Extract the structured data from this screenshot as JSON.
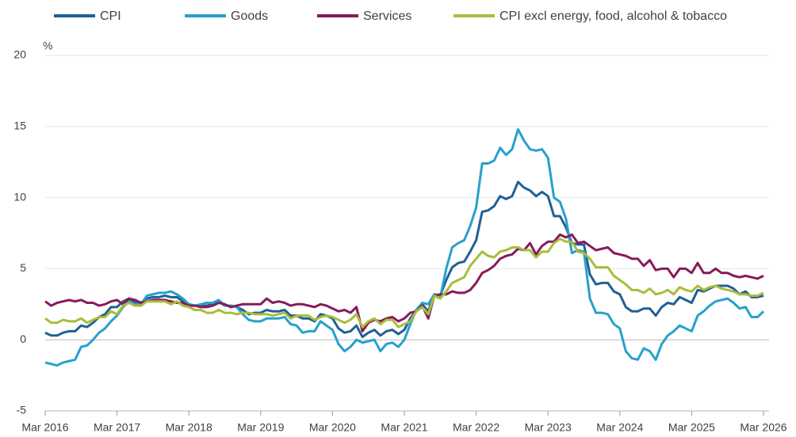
{
  "chart_data": {
    "type": "line",
    "y_label": "%",
    "ylim": [
      -5,
      20
    ],
    "yticks": [
      -5,
      0,
      5,
      10,
      15,
      20
    ],
    "grid": true,
    "categories": [
      "Mar 2016",
      null,
      null,
      null,
      null,
      null,
      null,
      null,
      null,
      null,
      null,
      null,
      "Mar 2017",
      null,
      null,
      null,
      null,
      null,
      null,
      null,
      null,
      null,
      null,
      null,
      "Mar 2018",
      null,
      null,
      null,
      null,
      null,
      null,
      null,
      null,
      null,
      null,
      null,
      "Mar 2019",
      null,
      null,
      null,
      null,
      null,
      null,
      null,
      null,
      null,
      null,
      null,
      "Mar 2020",
      null,
      null,
      null,
      null,
      null,
      null,
      null,
      null,
      null,
      null,
      null,
      "Mar 2021",
      null,
      null,
      null,
      null,
      null,
      null,
      null,
      null,
      null,
      null,
      null,
      "Mar 2022",
      null,
      null,
      null,
      null,
      null,
      null,
      null,
      null,
      null,
      null,
      null,
      "Mar 2023",
      null,
      null,
      null,
      null,
      null,
      null,
      null,
      null,
      null,
      null,
      null,
      "Mar 2024",
      null,
      null,
      null,
      null,
      null,
      null,
      null,
      null,
      null,
      null,
      null,
      "Mar 2025",
      null,
      null,
      null,
      null,
      null,
      null,
      null,
      null,
      null,
      null,
      null,
      "Mar 2026"
    ],
    "series": [
      {
        "name": "CPI",
        "color": "#206095",
        "values": [
          0.5,
          0.3,
          0.3,
          0.5,
          0.6,
          0.6,
          1.0,
          0.9,
          1.2,
          1.6,
          1.8,
          2.3,
          2.3,
          2.7,
          2.9,
          2.6,
          2.6,
          2.9,
          3.0,
          3.0,
          3.1,
          3.0,
          3.0,
          2.7,
          2.5,
          2.4,
          2.4,
          2.4,
          2.5,
          2.7,
          2.4,
          2.4,
          2.3,
          2.1,
          1.8,
          1.9,
          1.9,
          2.1,
          2.0,
          2.0,
          2.1,
          1.7,
          1.7,
          1.5,
          1.5,
          1.3,
          1.8,
          1.7,
          1.5,
          0.8,
          0.5,
          0.6,
          1.0,
          0.2,
          0.5,
          0.7,
          0.3,
          0.6,
          0.7,
          0.4,
          0.7,
          1.5,
          2.1,
          2.5,
          2.0,
          3.2,
          3.1,
          4.2,
          5.1,
          5.4,
          5.5,
          6.2,
          7.0,
          9.0,
          9.1,
          9.4,
          10.1,
          9.9,
          10.1,
          11.1,
          10.7,
          10.5,
          10.1,
          10.4,
          10.1,
          8.7,
          8.7,
          7.9,
          6.8,
          6.7,
          6.7,
          4.6,
          3.9,
          4.0,
          4.0,
          3.4,
          3.2,
          2.3,
          2.0,
          2.0,
          2.2,
          2.2,
          1.7,
          2.3,
          2.6,
          2.5,
          3.0,
          2.8,
          2.6,
          3.5,
          3.4,
          3.6,
          3.8,
          3.8,
          3.8,
          3.6,
          3.2,
          3.4,
          3.0,
          3.0,
          3.1
        ]
      },
      {
        "name": "Goods",
        "color": "#27a0cc",
        "values": [
          -1.6,
          -1.7,
          -1.8,
          -1.6,
          -1.5,
          -1.4,
          -0.5,
          -0.4,
          0.0,
          0.5,
          0.8,
          1.3,
          1.7,
          2.3,
          2.7,
          2.5,
          2.5,
          3.1,
          3.2,
          3.3,
          3.3,
          3.4,
          3.2,
          2.9,
          2.5,
          2.4,
          2.5,
          2.6,
          2.6,
          2.8,
          2.4,
          2.4,
          2.3,
          1.8,
          1.4,
          1.3,
          1.3,
          1.5,
          1.5,
          1.5,
          1.6,
          1.1,
          1.0,
          0.5,
          0.6,
          0.6,
          1.3,
          1.0,
          0.7,
          -0.3,
          -0.8,
          -0.5,
          0.0,
          -0.2,
          -0.1,
          0.0,
          -0.8,
          -0.3,
          -0.2,
          -0.5,
          0.0,
          1.1,
          2.1,
          2.6,
          2.5,
          3.2,
          3.0,
          5.0,
          6.5,
          6.8,
          7.0,
          8.0,
          9.3,
          12.4,
          12.4,
          12.6,
          13.5,
          13.0,
          13.4,
          14.8,
          14.0,
          13.4,
          13.3,
          13.4,
          12.8,
          10.0,
          9.7,
          8.5,
          6.1,
          6.3,
          6.2,
          2.9,
          1.9,
          1.9,
          1.8,
          1.1,
          0.8,
          -0.8,
          -1.3,
          -1.4,
          -0.6,
          -0.8,
          -1.4,
          -0.3,
          0.3,
          0.6,
          1.0,
          0.8,
          0.6,
          1.7,
          2.0,
          2.4,
          2.7,
          2.8,
          2.9,
          2.6,
          2.2,
          2.3,
          1.6,
          1.6,
          2.0
        ]
      },
      {
        "name": "Services",
        "color": "#871a5b",
        "values": [
          2.7,
          2.4,
          2.6,
          2.7,
          2.8,
          2.7,
          2.8,
          2.6,
          2.6,
          2.4,
          2.5,
          2.7,
          2.8,
          2.5,
          2.9,
          2.8,
          2.6,
          2.7,
          2.8,
          2.8,
          2.8,
          2.7,
          2.6,
          2.6,
          2.4,
          2.4,
          2.3,
          2.3,
          2.4,
          2.6,
          2.5,
          2.3,
          2.4,
          2.5,
          2.5,
          2.5,
          2.5,
          2.9,
          2.6,
          2.7,
          2.6,
          2.4,
          2.5,
          2.5,
          2.4,
          2.3,
          2.5,
          2.4,
          2.2,
          2.0,
          2.1,
          1.9,
          2.3,
          0.6,
          1.2,
          1.4,
          1.3,
          1.5,
          1.6,
          1.3,
          1.5,
          1.9,
          2.0,
          2.4,
          1.5,
          3.1,
          3.2,
          3.2,
          3.4,
          3.3,
          3.3,
          3.5,
          4.0,
          4.7,
          4.9,
          5.2,
          5.7,
          5.9,
          6.0,
          6.4,
          6.3,
          6.8,
          6.0,
          6.6,
          6.9,
          6.9,
          7.4,
          7.2,
          7.4,
          6.8,
          6.9,
          6.6,
          6.3,
          6.4,
          6.5,
          6.1,
          6.0,
          5.9,
          5.7,
          5.7,
          5.2,
          5.6,
          4.9,
          5.0,
          5.0,
          4.4,
          5.0,
          5.0,
          4.7,
          5.4,
          4.7,
          4.7,
          5.0,
          4.7,
          4.7,
          4.5,
          4.4,
          4.5,
          4.4,
          4.3,
          4.5
        ]
      },
      {
        "name": "CPI excl energy, food, alcohol & tobacco",
        "color": "#a8bd3a",
        "values": [
          1.5,
          1.2,
          1.2,
          1.4,
          1.3,
          1.3,
          1.5,
          1.2,
          1.4,
          1.6,
          1.6,
          2.0,
          1.8,
          2.4,
          2.6,
          2.4,
          2.4,
          2.7,
          2.7,
          2.7,
          2.7,
          2.5,
          2.7,
          2.4,
          2.3,
          2.1,
          2.1,
          1.9,
          1.9,
          2.1,
          1.9,
          1.9,
          1.8,
          1.9,
          1.9,
          1.8,
          1.8,
          1.8,
          1.7,
          1.8,
          1.9,
          1.5,
          1.7,
          1.7,
          1.7,
          1.4,
          1.6,
          1.7,
          1.6,
          1.4,
          1.2,
          1.4,
          1.8,
          0.9,
          1.3,
          1.5,
          1.1,
          1.4,
          1.4,
          0.9,
          1.1,
          1.3,
          2.0,
          2.3,
          1.8,
          3.1,
          2.9,
          3.4,
          4.0,
          4.2,
          4.4,
          5.2,
          5.7,
          6.2,
          5.9,
          5.8,
          6.2,
          6.3,
          6.5,
          6.5,
          6.3,
          6.3,
          5.8,
          6.2,
          6.2,
          6.8,
          7.1,
          6.9,
          6.9,
          6.2,
          6.1,
          5.7,
          5.1,
          5.1,
          5.1,
          4.5,
          4.2,
          3.9,
          3.5,
          3.5,
          3.3,
          3.6,
          3.2,
          3.3,
          3.5,
          3.2,
          3.7,
          3.5,
          3.4,
          3.8,
          3.5,
          3.7,
          3.8,
          3.6,
          3.5,
          3.4,
          3.2,
          3.2,
          3.1,
          3.1,
          3.3
        ]
      }
    ]
  }
}
